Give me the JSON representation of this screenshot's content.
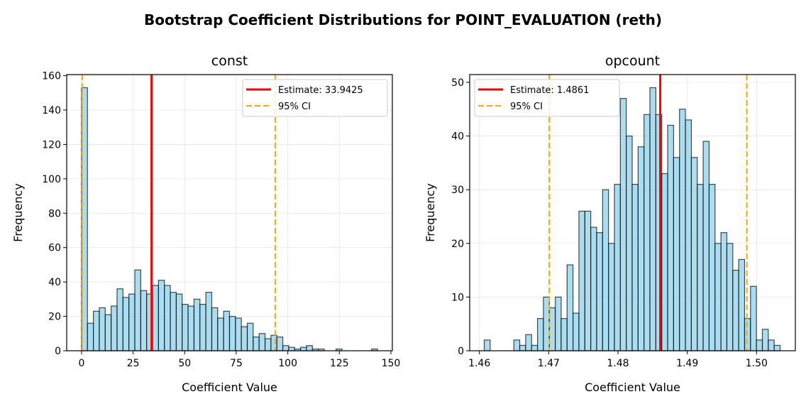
{
  "title": "Bootstrap Coefficient Distributions for POINT_EVALUATION (reth)",
  "chart_data": [
    {
      "type": "bar",
      "subtype": "histogram",
      "title": "const",
      "xlabel": "Coefficient Value",
      "ylabel": "Frequency",
      "bin_range": [
        0,
        143.5
      ],
      "bins": 50,
      "values": [
        153,
        16,
        23,
        25,
        21,
        26,
        36,
        31,
        33,
        47,
        35,
        33,
        38,
        41,
        38,
        34,
        33,
        27,
        26,
        30,
        27,
        34,
        25,
        19,
        23,
        20,
        19,
        14,
        16,
        8,
        10,
        7,
        9,
        8,
        3,
        2,
        1,
        2,
        3,
        1,
        1,
        0,
        0,
        1,
        0,
        0,
        0,
        0,
        0,
        1
      ],
      "xlim": [
        -7.2,
        150.7
      ],
      "ylim": [
        0,
        160.65
      ],
      "xticks": [
        "0",
        "25",
        "50",
        "75",
        "100",
        "125",
        "150"
      ],
      "yticks": [
        "0",
        "20",
        "40",
        "60",
        "80",
        "100",
        "120",
        "140",
        "160"
      ],
      "grid": true,
      "legend_position": "top-right",
      "estimate": 33.9425,
      "ci": [
        0.3,
        93.9
      ],
      "legend": {
        "estimate_label": "Estimate: 33.9425",
        "ci_label": "95% CI"
      },
      "colors": {
        "bar": "#87CEEB",
        "estimate": "#FF0000",
        "ci": "#FFA500"
      }
    },
    {
      "type": "bar",
      "subtype": "histogram",
      "title": "opcount",
      "xlabel": "Coefficient Value",
      "ylabel": "Frequency",
      "bin_range": [
        1.4607,
        1.5034
      ],
      "bins": 50,
      "values": [
        2,
        0,
        0,
        0,
        0,
        2,
        1,
        3,
        1,
        6,
        10,
        8,
        10,
        6,
        16,
        7,
        26,
        26,
        23,
        22,
        30,
        20,
        31,
        47,
        40,
        31,
        38,
        44,
        49,
        44,
        33,
        42,
        36,
        45,
        43,
        36,
        31,
        39,
        31,
        20,
        22,
        20,
        15,
        17,
        6,
        12,
        2,
        4,
        2,
        1
      ],
      "xlim": [
        1.4586,
        1.5056
      ],
      "ylim": [
        0,
        51.45
      ],
      "xticks": [
        "1.46",
        "1.47",
        "1.48",
        "1.49",
        "1.50"
      ],
      "yticks": [
        "0",
        "10",
        "20",
        "30",
        "40",
        "50"
      ],
      "grid": true,
      "legend_position": "top-left",
      "estimate": 1.4861,
      "ci": [
        1.4701,
        1.4986
      ],
      "legend": {
        "estimate_label": "Estimate: 1.4861",
        "ci_label": "95% CI"
      },
      "colors": {
        "bar": "#87CEEB",
        "estimate": "#FF0000",
        "ci": "#FFA500"
      }
    }
  ]
}
